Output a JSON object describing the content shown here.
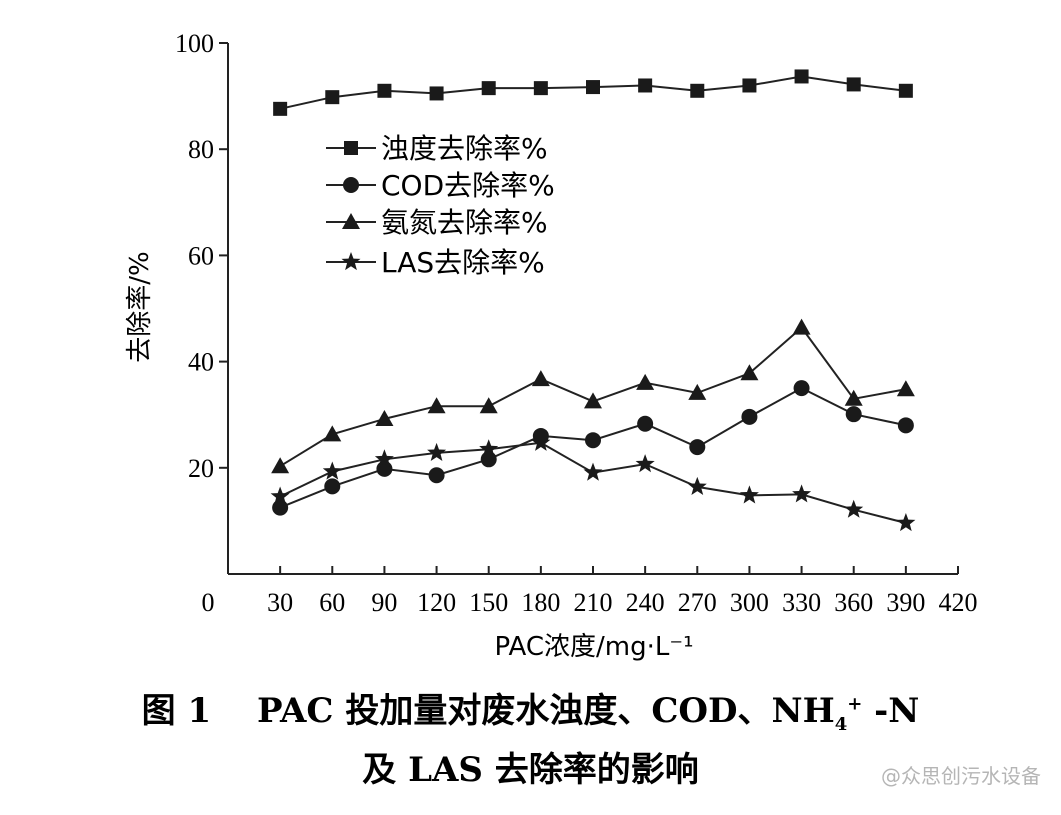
{
  "chart_data": {
    "type": "line",
    "xlabel": "PAC浓度/mg·L⁻¹",
    "ylabel": "去除率/%",
    "xlim": [
      0,
      420
    ],
    "ylim": [
      0,
      100
    ],
    "x_ticks": [
      "0",
      "30",
      "60",
      "90",
      "120",
      "150",
      "180",
      "210",
      "240",
      "270",
      "300",
      "330",
      "360",
      "390",
      "420"
    ],
    "y_ticks": [
      "20",
      "40",
      "60",
      "80",
      "100"
    ],
    "x": [
      30,
      60,
      90,
      120,
      150,
      180,
      210,
      240,
      270,
      300,
      330,
      360,
      390
    ],
    "series": [
      {
        "name": "浊度去除率%",
        "marker": "square",
        "values": [
          87.6,
          89.8,
          91.0,
          90.5,
          91.5,
          91.5,
          91.7,
          92.0,
          91.0,
          92.0,
          93.7,
          92.2,
          91.0
        ]
      },
      {
        "name": "COD去除率%",
        "marker": "circle",
        "values": [
          12.5,
          16.5,
          19.8,
          18.6,
          21.6,
          26.0,
          25.2,
          28.3,
          23.9,
          29.6,
          35.0,
          30.1,
          28.0
        ]
      },
      {
        "name": "氨氮去除率%",
        "marker": "triangle",
        "values": [
          20.3,
          26.3,
          29.2,
          31.6,
          31.6,
          36.7,
          32.5,
          36.0,
          34.1,
          37.8,
          46.4,
          33.0,
          34.8
        ]
      },
      {
        "name": "LAS去除率%",
        "marker": "star",
        "values": [
          14.6,
          19.3,
          21.6,
          22.8,
          23.5,
          24.7,
          19.1,
          20.7,
          16.4,
          14.8,
          15.0,
          12.1,
          9.6
        ]
      }
    ],
    "legend_position": "top-left",
    "grid": false,
    "line_color": "#222222"
  },
  "caption": {
    "line1_prefix": "图 1　 PAC 投加量对废水浊度、COD、NH",
    "line1_sub": "4",
    "line1_sup": "+",
    "line1_suffix": " -N",
    "line2": "及 LAS 去除率的影响"
  },
  "watermark": "@众思创污水设备"
}
